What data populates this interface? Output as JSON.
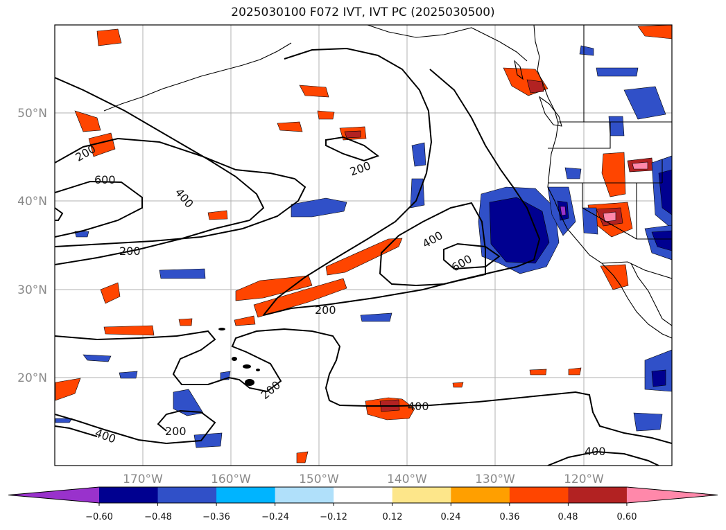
{
  "figure": {
    "title": "2025030100 F072 IVT, IVT PC (2025030500)"
  },
  "map": {
    "lat_ticks": [
      "50°N",
      "40°N",
      "30°N",
      "20°N"
    ],
    "lon_ticks": [
      "170°W",
      "160°W",
      "150°W",
      "140°W",
      "130°W",
      "120°W"
    ],
    "contour_labels": [
      "200",
      "600",
      "400",
      "200",
      "200",
      "400",
      "600",
      "200",
      "200",
      "400",
      "200",
      "400",
      "400"
    ],
    "contour_color": "#000000",
    "grid": true
  },
  "colorbar": {
    "tick_labels": [
      "−0.60",
      "−0.48",
      "−0.36",
      "−0.24",
      "−0.12",
      "0.12",
      "0.24",
      "0.36",
      "0.48",
      "0.60"
    ],
    "colors": [
      "#9932cc",
      "#000090",
      "#3050c8",
      "#00b4ff",
      "#b0e0fa",
      "#ffffff",
      "#fde68a",
      "#ff9f00",
      "#ff4500",
      "#b22222",
      "#ff88aa"
    ]
  }
}
